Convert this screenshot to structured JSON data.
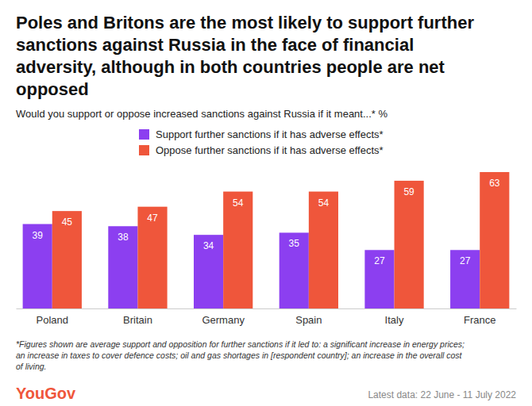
{
  "chart_data": {
    "type": "bar",
    "title": [
      "Poles and Britons are the most likely to support further",
      "sanctions against Russia in the face of financial",
      "adversity, although in both countries people are net",
      "opposed"
    ],
    "subtitle": "Would you support or oppose increased sanctions against Russia if it meant...* %",
    "categories": [
      "Poland",
      "Britain",
      "Germany",
      "Spain",
      "Italy",
      "France"
    ],
    "series": [
      {
        "name": "Support further sanctions if it has adverse effects*",
        "color": "#8c3ff0",
        "values": [
          39,
          38,
          34,
          35,
          27,
          27
        ]
      },
      {
        "name": "Oppose further sanctions if it has adverse effects*",
        "color": "#ef563b",
        "values": [
          45,
          47,
          54,
          54,
          59,
          63
        ]
      }
    ],
    "legend": "top",
    "data_labels": true,
    "tick_labels": "x",
    "footnote": [
      "*Figures shown are average support and opposition for further sanctions if it led to: a significant increase in energy prices;",
      "an increase in taxes to cover defence costs; oil and gas shortages in [respondent country]; an increase in the overall cost",
      "of living."
    ],
    "logo": "YouGov",
    "source": "Latest data: 22 June - 11 July 2022"
  }
}
